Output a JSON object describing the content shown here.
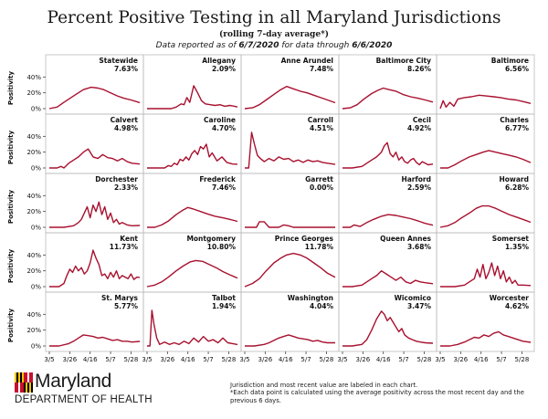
{
  "header": {
    "title": "Percent Positive Testing in all Maryland Jurisdictions",
    "subtitle": "(rolling 7-day average*)",
    "data_prefix": "Data reported as of ",
    "report_date": "6/7/2020",
    "data_middle": " for data through ",
    "through_date": "6/6/2020"
  },
  "footer": {
    "logo_text": "Maryland",
    "logo_sub": "DEPARTMENT OF HEALTH",
    "note1": "Jurisdiction and most recent value are labeled in each chart.",
    "note2": "*Each data point is calculated using the average positivity across the most recent day and the previous 6 days."
  },
  "colors": {
    "line": "#a8102e",
    "axis": "#444444",
    "frame": "#bbbbbb"
  },
  "chart_data": {
    "type": "line",
    "layout": "small-multiples",
    "ylabel": "Positivity",
    "ylim": [
      0,
      45
    ],
    "yticks": [
      "0%",
      "20%",
      "40%"
    ],
    "xlim": [
      "3/5",
      "6/6"
    ],
    "xticks": [
      "3/5",
      "3/26",
      "4/16",
      "5/7",
      "5/28"
    ],
    "panels": [
      {
        "name": "Statewide",
        "value": "7.63%",
        "x": [
          0,
          8,
          15,
          25,
          35,
          43,
          50,
          56,
          63,
          70,
          77,
          84,
          93
        ],
        "y": [
          0,
          2,
          8,
          16,
          24,
          27,
          26,
          24,
          20,
          16,
          13,
          11,
          7.6
        ]
      },
      {
        "name": "Allegany",
        "value": "2.09%",
        "x": [
          0,
          10,
          20,
          25,
          30,
          35,
          38,
          41,
          44,
          48,
          52,
          56,
          60,
          65,
          70,
          75,
          80,
          85,
          90,
          93
        ],
        "y": [
          0,
          0,
          0,
          0,
          2,
          6,
          5,
          14,
          8,
          29,
          20,
          10,
          6,
          5,
          4,
          5,
          3,
          4,
          3,
          2.1
        ]
      },
      {
        "name": "Anne Arundel",
        "value": "7.48%",
        "x": [
          0,
          8,
          15,
          22,
          30,
          37,
          43,
          50,
          57,
          64,
          71,
          78,
          85,
          93
        ],
        "y": [
          0,
          1,
          5,
          11,
          18,
          24,
          28,
          25,
          22,
          20,
          17,
          14,
          11,
          7.5
        ]
      },
      {
        "name": "Baltimore City",
        "value": "8.26%",
        "x": [
          0,
          8,
          15,
          22,
          30,
          36,
          42,
          48,
          55,
          62,
          70,
          78,
          85,
          93
        ],
        "y": [
          0,
          1,
          5,
          12,
          19,
          23,
          26,
          24,
          22,
          18,
          15,
          13,
          11,
          8.3
        ]
      },
      {
        "name": "Baltimore",
        "value": "6.56%",
        "x": [
          0,
          3,
          6,
          10,
          14,
          18,
          25,
          32,
          40,
          47,
          55,
          62,
          70,
          78,
          85,
          93
        ],
        "y": [
          0,
          10,
          2,
          8,
          3,
          12,
          14,
          15,
          17,
          16,
          15,
          14,
          12,
          11,
          9,
          6.6
        ]
      },
      {
        "name": "Calvert",
        "value": "4.98%",
        "x": [
          0,
          8,
          12,
          15,
          20,
          25,
          30,
          35,
          40,
          45,
          50,
          55,
          60,
          65,
          70,
          75,
          80,
          85,
          93
        ],
        "y": [
          0,
          0,
          2,
          0,
          6,
          10,
          14,
          20,
          24,
          14,
          12,
          17,
          13,
          12,
          9,
          12,
          8,
          6,
          5
        ]
      },
      {
        "name": "Caroline",
        "value": "4.70%",
        "x": [
          0,
          10,
          18,
          22,
          25,
          28,
          31,
          34,
          37,
          40,
          43,
          46,
          49,
          52,
          55,
          58,
          61,
          64,
          67,
          72,
          77,
          82,
          88,
          93
        ],
        "y": [
          0,
          0,
          0,
          3,
          2,
          6,
          4,
          11,
          9,
          14,
          10,
          18,
          22,
          17,
          27,
          24,
          30,
          14,
          19,
          9,
          14,
          7,
          5,
          4.7
        ]
      },
      {
        "name": "Carroll",
        "value": "4.51%",
        "x": [
          0,
          4,
          7,
          10,
          13,
          16,
          20,
          25,
          30,
          35,
          40,
          45,
          50,
          55,
          60,
          65,
          70,
          75,
          80,
          85,
          93
        ],
        "y": [
          0,
          0,
          45,
          30,
          16,
          12,
          8,
          12,
          9,
          14,
          11,
          12,
          8,
          10,
          7,
          10,
          8,
          9,
          7,
          6,
          4.5
        ]
      },
      {
        "name": "Cecil",
        "value": "4.92%",
        "x": [
          0,
          10,
          20,
          25,
          30,
          35,
          40,
          43,
          46,
          49,
          52,
          55,
          58,
          61,
          64,
          67,
          70,
          73,
          76,
          79,
          82,
          85,
          88,
          93
        ],
        "y": [
          0,
          0,
          2,
          6,
          10,
          14,
          20,
          28,
          32,
          18,
          14,
          20,
          10,
          14,
          8,
          6,
          10,
          12,
          7,
          4,
          8,
          6,
          4,
          4.9
        ]
      },
      {
        "name": "Charles",
        "value": "6.77%",
        "x": [
          0,
          8,
          15,
          22,
          30,
          37,
          44,
          50,
          57,
          64,
          71,
          78,
          85,
          93
        ],
        "y": [
          0,
          0,
          4,
          9,
          14,
          17,
          20,
          22,
          20,
          18,
          16,
          14,
          11,
          6.8
        ]
      },
      {
        "name": "Dorchester",
        "value": "2.33%",
        "x": [
          0,
          15,
          25,
          30,
          33,
          36,
          39,
          42,
          45,
          48,
          51,
          54,
          57,
          60,
          63,
          66,
          69,
          72,
          75,
          80,
          85,
          93
        ],
        "y": [
          0,
          0,
          2,
          6,
          10,
          18,
          26,
          12,
          28,
          20,
          32,
          16,
          26,
          10,
          18,
          6,
          10,
          4,
          6,
          3,
          2,
          2.3
        ]
      },
      {
        "name": "Frederick",
        "value": "7.46%",
        "x": [
          0,
          8,
          15,
          22,
          30,
          36,
          42,
          48,
          55,
          62,
          70,
          78,
          85,
          93
        ],
        "y": [
          0,
          0,
          3,
          8,
          16,
          21,
          25,
          23,
          20,
          17,
          14,
          12,
          10,
          7.5
        ]
      },
      {
        "name": "Garrett",
        "value": "0.00%",
        "x": [
          0,
          12,
          15,
          20,
          25,
          35,
          40,
          45,
          50,
          60,
          70,
          80,
          93
        ],
        "y": [
          0,
          0,
          7,
          7,
          0,
          0,
          3,
          2,
          0,
          0,
          0,
          0,
          0
        ]
      },
      {
        "name": "Harford",
        "value": "2.59%",
        "x": [
          0,
          8,
          12,
          18,
          25,
          32,
          40,
          47,
          55,
          62,
          70,
          78,
          85,
          93
        ],
        "y": [
          0,
          0,
          3,
          1,
          6,
          10,
          14,
          16,
          15,
          13,
          11,
          8,
          5,
          2.6
        ]
      },
      {
        "name": "Howard",
        "value": "6.28%",
        "x": [
          0,
          8,
          15,
          22,
          30,
          37,
          43,
          50,
          57,
          64,
          71,
          78,
          85,
          93
        ],
        "y": [
          0,
          2,
          6,
          12,
          18,
          24,
          27,
          27,
          24,
          20,
          16,
          13,
          10,
          6.3
        ]
      },
      {
        "name": "Kent",
        "value": "11.73%",
        "x": [
          0,
          10,
          15,
          18,
          21,
          24,
          27,
          30,
          33,
          36,
          39,
          42,
          45,
          48,
          51,
          54,
          57,
          60,
          63,
          66,
          69,
          72,
          75,
          78,
          81,
          84,
          87,
          90,
          93
        ],
        "y": [
          0,
          0,
          4,
          14,
          22,
          18,
          26,
          20,
          24,
          16,
          20,
          30,
          46,
          36,
          28,
          14,
          16,
          10,
          18,
          12,
          20,
          10,
          14,
          12,
          10,
          16,
          9,
          12,
          11.7
        ]
      },
      {
        "name": "Montgomery",
        "value": "10.80%",
        "x": [
          0,
          8,
          15,
          22,
          30,
          37,
          44,
          50,
          57,
          64,
          71,
          78,
          85,
          93
        ],
        "y": [
          0,
          2,
          6,
          12,
          20,
          26,
          31,
          33,
          32,
          28,
          24,
          19,
          15,
          10.8
        ]
      },
      {
        "name": "Prince Georges",
        "value": "11.78%",
        "x": [
          0,
          8,
          15,
          22,
          30,
          37,
          43,
          50,
          57,
          64,
          71,
          78,
          85,
          93
        ],
        "y": [
          0,
          4,
          10,
          20,
          30,
          36,
          40,
          42,
          40,
          36,
          30,
          24,
          17,
          11.8
        ]
      },
      {
        "name": "Queen Annes",
        "value": "3.68%",
        "x": [
          0,
          10,
          20,
          25,
          30,
          35,
          40,
          45,
          50,
          55,
          60,
          65,
          70,
          75,
          80,
          85,
          93
        ],
        "y": [
          0,
          0,
          2,
          6,
          10,
          14,
          20,
          16,
          12,
          8,
          12,
          6,
          4,
          8,
          6,
          5,
          3.7
        ]
      },
      {
        "name": "Somerset",
        "value": "1.35%",
        "x": [
          0,
          15,
          25,
          30,
          35,
          38,
          41,
          44,
          47,
          50,
          53,
          56,
          59,
          62,
          65,
          68,
          71,
          74,
          77,
          80,
          85,
          93
        ],
        "y": [
          0,
          0,
          2,
          6,
          10,
          22,
          12,
          28,
          10,
          18,
          30,
          14,
          26,
          10,
          20,
          6,
          12,
          4,
          8,
          2,
          2,
          1.35
        ]
      },
      {
        "name": "St. Marys",
        "value": "5.77%",
        "x": [
          0,
          10,
          20,
          25,
          30,
          35,
          40,
          45,
          50,
          55,
          60,
          65,
          70,
          75,
          80,
          85,
          93
        ],
        "y": [
          0,
          0,
          3,
          6,
          10,
          14,
          13,
          12,
          10,
          11,
          9,
          7,
          8,
          6,
          6,
          5,
          5.8
        ]
      },
      {
        "name": "Talbot",
        "value": "1.94%",
        "x": [
          0,
          3,
          5,
          7,
          10,
          13,
          18,
          23,
          28,
          33,
          38,
          43,
          48,
          53,
          58,
          63,
          68,
          73,
          78,
          83,
          88,
          93
        ],
        "y": [
          0,
          0,
          45,
          28,
          10,
          2,
          5,
          2,
          4,
          2,
          6,
          3,
          10,
          5,
          12,
          6,
          8,
          4,
          10,
          4,
          3,
          1.9
        ]
      },
      {
        "name": "Washington",
        "value": "4.04%",
        "x": [
          0,
          10,
          20,
          25,
          30,
          35,
          40,
          45,
          50,
          55,
          60,
          65,
          70,
          75,
          80,
          85,
          93
        ],
        "y": [
          0,
          0,
          2,
          4,
          7,
          10,
          12,
          14,
          12,
          10,
          9,
          8,
          6,
          7,
          5,
          4,
          4
        ]
      },
      {
        "name": "Wicomico",
        "value": "3.47%",
        "x": [
          0,
          10,
          20,
          25,
          30,
          35,
          40,
          43,
          46,
          49,
          52,
          55,
          58,
          61,
          64,
          68,
          72,
          76,
          80,
          85,
          93
        ],
        "y": [
          0,
          0,
          2,
          8,
          20,
          34,
          44,
          40,
          32,
          36,
          30,
          24,
          18,
          22,
          14,
          10,
          8,
          6,
          5,
          4,
          3.5
        ]
      },
      {
        "name": "Worcester",
        "value": "4.62%",
        "x": [
          0,
          10,
          18,
          25,
          30,
          35,
          40,
          45,
          50,
          55,
          60,
          65,
          70,
          75,
          80,
          85,
          93
        ],
        "y": [
          0,
          0,
          2,
          5,
          8,
          11,
          10,
          14,
          12,
          16,
          18,
          14,
          12,
          10,
          8,
          6,
          4.6
        ]
      }
    ]
  }
}
